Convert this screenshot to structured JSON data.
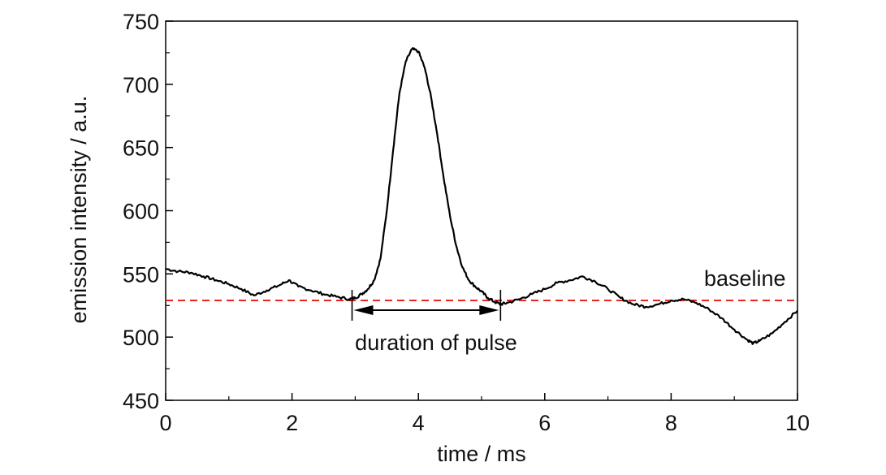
{
  "chart_data": {
    "type": "line",
    "xlabel": "time / ms",
    "ylabel": "emission intensity / a.u.",
    "xlim": [
      0,
      10
    ],
    "ylim": [
      450,
      750
    ],
    "x_ticks": [
      0,
      2,
      4,
      6,
      8,
      10
    ],
    "y_ticks": [
      450,
      500,
      550,
      600,
      650,
      700,
      750
    ],
    "grid": false,
    "series": [
      {
        "color": "#000000",
        "x": [
          0,
          0.2,
          0.4,
          0.6,
          0.8,
          1.0,
          1.2,
          1.4,
          1.6,
          1.8,
          1.95,
          2.1,
          2.3,
          2.5,
          2.7,
          2.9,
          3.0,
          3.1,
          3.2,
          3.3,
          3.4,
          3.5,
          3.6,
          3.7,
          3.8,
          3.9,
          4.0,
          4.1,
          4.2,
          4.3,
          4.4,
          4.5,
          4.6,
          4.7,
          4.8,
          4.9,
          5.0,
          5.1,
          5.2,
          5.3,
          5.4,
          5.6,
          5.8,
          6.0,
          6.2,
          6.4,
          6.6,
          6.8,
          7.0,
          7.2,
          7.4,
          7.6,
          7.8,
          8.0,
          8.2,
          8.4,
          8.6,
          8.8,
          9.0,
          9.2,
          9.3,
          9.4,
          9.6,
          9.8,
          10.0
        ],
        "y": [
          554,
          552,
          551,
          548,
          545,
          542,
          538,
          533,
          537,
          541,
          545,
          540,
          537,
          534,
          532,
          530,
          531,
          534,
          538,
          545,
          562,
          600,
          648,
          693,
          718,
          728,
          726,
          713,
          690,
          660,
          626,
          596,
          572,
          555,
          545,
          540,
          536,
          531,
          528,
          526,
          527,
          530,
          534,
          538,
          543,
          545,
          548,
          544,
          538,
          531,
          526,
          524,
          526,
          529,
          530,
          527,
          522,
          515,
          506,
          498,
          495,
          497,
          503,
          512,
          521
        ]
      }
    ],
    "baseline": {
      "label": "baseline",
      "value": 529,
      "color": "#e8251f"
    },
    "pulse": {
      "label": "duration of pulse",
      "start": 2.95,
      "end": 5.3
    }
  }
}
